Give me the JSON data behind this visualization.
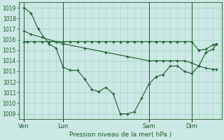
{
  "background_color": "#cce8e4",
  "grid_color": "#a8d4ce",
  "line_color": "#1a5c2a",
  "title": "Pression niveau de la mer( hPa )",
  "ylim": [
    1008.5,
    1019.5
  ],
  "yticks": [
    1009,
    1010,
    1011,
    1012,
    1013,
    1014,
    1015,
    1016,
    1017,
    1018,
    1019
  ],
  "xlim": [
    -0.2,
    28.2
  ],
  "xtick_labels": [
    "Ven",
    "Lun",
    "Sam",
    "Dim"
  ],
  "xtick_positions": [
    0.5,
    6,
    18,
    24
  ],
  "vline_positions": [
    0.5,
    6,
    18,
    24
  ],
  "series": [
    {
      "x": [
        0.5,
        1,
        2,
        3,
        4,
        5,
        6,
        7,
        8,
        9,
        10,
        11,
        12,
        13,
        14,
        15,
        16,
        17,
        18,
        19,
        20,
        21,
        22,
        23,
        24,
        25,
        26,
        27,
        27.5
      ],
      "y": [
        1015.8,
        1015.8,
        1015.8,
        1015.8,
        1015.8,
        1015.8,
        1015.8,
        1015.8,
        1015.8,
        1015.8,
        1015.8,
        1015.8,
        1015.8,
        1015.8,
        1015.8,
        1015.8,
        1015.8,
        1015.8,
        1015.8,
        1015.8,
        1015.8,
        1015.8,
        1015.8,
        1015.8,
        1015.8,
        1015.0,
        1015.1,
        1015.5,
        1015.6
      ]
    },
    {
      "x": [
        0.5,
        1.5,
        3,
        6,
        9,
        12,
        15,
        18,
        19,
        20,
        21,
        22,
        23,
        24,
        25,
        26,
        27,
        27.5
      ],
      "y": [
        1016.8,
        1016.5,
        1016.2,
        1015.6,
        1015.2,
        1014.8,
        1014.4,
        1014.0,
        1014.0,
        1014.0,
        1014.0,
        1014.0,
        1014.0,
        1013.8,
        1013.5,
        1013.3,
        1013.2,
        1013.2
      ]
    },
    {
      "x": [
        0.5,
        1.5,
        2.5,
        4,
        5,
        6,
        7,
        8,
        9,
        10,
        11,
        12,
        13,
        14,
        15,
        16,
        17,
        18,
        19,
        20,
        21,
        22,
        23,
        24,
        25,
        26,
        27,
        27.5
      ],
      "y": [
        1019.0,
        1018.5,
        1017.0,
        1015.6,
        1015.2,
        1013.4,
        1013.1,
        1013.1,
        1012.3,
        1011.3,
        1011.1,
        1011.5,
        1010.9,
        1009.0,
        1009.0,
        1009.2,
        1010.5,
        1011.8,
        1012.5,
        1012.7,
        1013.5,
        1013.5,
        1013.0,
        1012.8,
        1013.5,
        1014.8,
        1015.1,
        1015.6
      ]
    }
  ],
  "figsize": [
    3.2,
    2.0
  ],
  "dpi": 100
}
